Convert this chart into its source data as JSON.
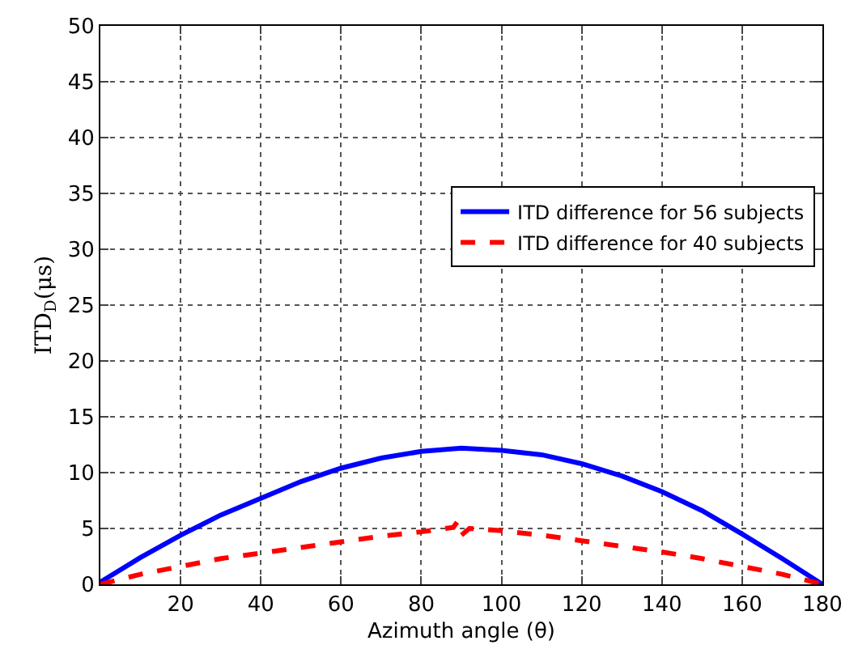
{
  "chart_data": {
    "type": "line",
    "xlabel": "Azimuth angle (θ)",
    "ylabel": "ITD$_{D}$(μs)",
    "xlim": [
      0,
      180
    ],
    "xticks": [
      20,
      40,
      60,
      80,
      100,
      120,
      140,
      160,
      180
    ],
    "ylim": [
      0,
      50
    ],
    "yticks": [
      0,
      5,
      10,
      15,
      20,
      25,
      30,
      35,
      40,
      45,
      50
    ],
    "grid": true,
    "legend": "right",
    "marker": "none",
    "series": [
      {
        "name": "ITD difference for 56 subjects",
        "color": "#0000ff",
        "line_style": "solid",
        "x": [
          0,
          10,
          20,
          30,
          40,
          50,
          60,
          70,
          80,
          90,
          100,
          110,
          120,
          130,
          140,
          150,
          160,
          170,
          180
        ],
        "values": [
          0.2,
          2.4,
          4.4,
          6.2,
          7.7,
          9.2,
          10.4,
          11.3,
          11.9,
          12.2,
          12.0,
          11.6,
          10.8,
          9.7,
          8.3,
          6.6,
          4.5,
          2.3,
          0
        ]
      },
      {
        "name": "ITD difference for 40 subjects",
        "color": "#ff0000",
        "line_style": "dashed",
        "x": [
          0,
          10,
          20,
          30,
          40,
          50,
          60,
          70,
          80,
          88,
          89,
          90,
          92,
          100,
          110,
          120,
          130,
          140,
          150,
          160,
          170,
          180
        ],
        "values": [
          0,
          0.9,
          1.6,
          2.3,
          2.8,
          3.3,
          3.8,
          4.3,
          4.7,
          5.1,
          5.6,
          4.4,
          5.0,
          4.8,
          4.4,
          3.9,
          3.4,
          2.9,
          2.3,
          1.6,
          0.9,
          0
        ]
      }
    ]
  }
}
